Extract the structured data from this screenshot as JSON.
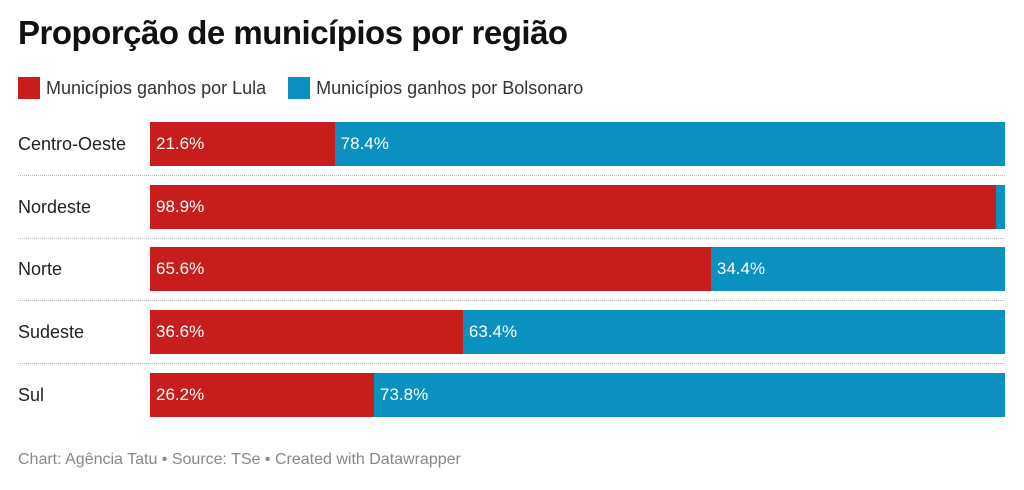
{
  "chart_data": {
    "type": "bar",
    "stacked": true,
    "orientation": "horizontal",
    "title": "Proporção de municípios por região",
    "categories": [
      "Centro-Oeste",
      "Nordeste",
      "Norte",
      "Sudeste",
      "Sul"
    ],
    "series": [
      {
        "name": "Municípios ganhos por Lula",
        "color": "#c71e1d",
        "values": [
          21.6,
          98.9,
          65.6,
          36.6,
          26.2
        ],
        "labels": [
          "21.6%",
          "98.9%",
          "65.6%",
          "36.6%",
          "26.2%"
        ]
      },
      {
        "name": "Municípios ganhos por Bolsonaro",
        "color": "#0b91c0",
        "values": [
          78.4,
          1.1,
          34.4,
          63.4,
          73.8
        ],
        "labels": [
          "78.4%",
          "",
          "34.4%",
          "63.4%",
          "73.8%"
        ]
      }
    ],
    "xlim": [
      0,
      100
    ],
    "legend": "top-left"
  },
  "footer": "Chart: Agência Tatu • Source: TSe • Created with Datawrapper"
}
